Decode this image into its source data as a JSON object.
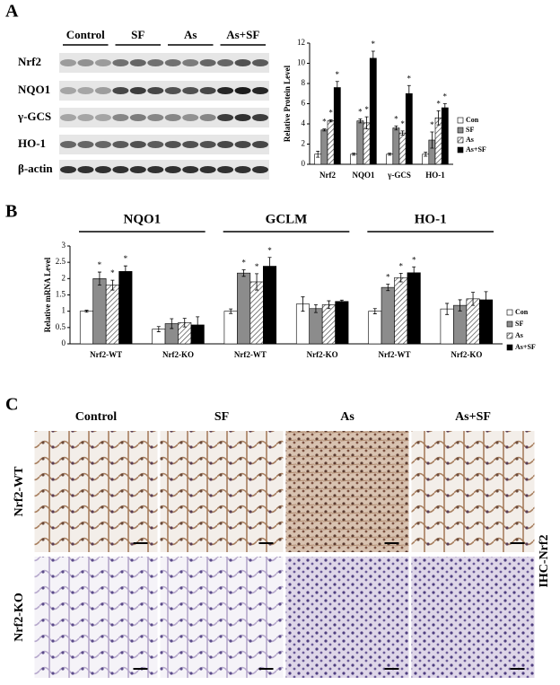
{
  "panels": {
    "a": {
      "label": "A",
      "blot": {
        "columns": [
          "Control",
          "SF",
          "As",
          "As+SF"
        ],
        "rows": [
          "Nrf2",
          "NQO1",
          "γ-GCS",
          "HO-1",
          "β-actin"
        ]
      }
    },
    "b": {
      "label": "B"
    },
    "c": {
      "label": "C",
      "columns": [
        "Control",
        "SF",
        "As",
        "As+SF"
      ],
      "rows": [
        "Nrf2-WT",
        "Nrf2-KO"
      ],
      "side_label": "IHC-Nrf2"
    }
  },
  "chart_data": [
    {
      "type": "bar",
      "ylabel": "Relative Protein Level",
      "categories": [
        "Nrf2",
        "NQO1",
        "γ-GCS",
        "HO-1"
      ],
      "ylim": [
        0,
        12
      ],
      "yticks": [
        0,
        2,
        4,
        6,
        8,
        10,
        12
      ],
      "marker": "*",
      "series": [
        {
          "name": "Con",
          "color": "#ffffff",
          "values": [
            1.0,
            1.0,
            1.0,
            1.0
          ],
          "errors": [
            0.3,
            0.1,
            0.1,
            0.2
          ],
          "significant": [
            false,
            false,
            false,
            false
          ]
        },
        {
          "name": "SF",
          "color": "#8c8c8c",
          "values": [
            3.4,
            4.3,
            3.6,
            2.4
          ],
          "errors": [
            0.1,
            0.2,
            0.2,
            0.8
          ],
          "significant": [
            true,
            true,
            true,
            true
          ]
        },
        {
          "name": "As",
          "color": "#d9d9d9",
          "values": [
            4.3,
            4.1,
            3.1,
            4.6
          ],
          "errors": [
            0.1,
            0.6,
            0.2,
            0.7
          ],
          "significant": [
            true,
            true,
            true,
            true
          ]
        },
        {
          "name": "As+SF",
          "color": "#000000",
          "values": [
            7.6,
            10.5,
            7.0,
            5.6
          ],
          "errors": [
            0.6,
            0.7,
            0.8,
            0.4
          ],
          "significant": [
            true,
            true,
            true,
            true
          ]
        }
      ]
    },
    {
      "type": "bar",
      "ylabel": "Relative mRNA Level",
      "groups": [
        "NQO1",
        "GCLM",
        "HO-1"
      ],
      "categories": [
        "Nrf2-WT",
        "Nrf2-KO",
        "Nrf2-WT",
        "Nrf2-KO",
        "Nrf2-WT",
        "Nrf2-KO"
      ],
      "ylim": [
        0,
        3
      ],
      "yticks": [
        0,
        0.5,
        1,
        1.5,
        2,
        2.5,
        3
      ],
      "marker": "*",
      "series": [
        {
          "name": "Con",
          "color": "#ffffff",
          "values": [
            1.0,
            0.45,
            1.0,
            1.22,
            1.0,
            1.07
          ],
          "errors": [
            0.03,
            0.08,
            0.07,
            0.22,
            0.08,
            0.17
          ],
          "significant": [
            false,
            false,
            false,
            false,
            false,
            false
          ]
        },
        {
          "name": "SF",
          "color": "#8c8c8c",
          "values": [
            2.0,
            0.62,
            2.17,
            1.08,
            1.73,
            1.18
          ],
          "errors": [
            0.2,
            0.15,
            0.1,
            0.12,
            0.1,
            0.17
          ],
          "significant": [
            true,
            false,
            true,
            false,
            true,
            false
          ]
        },
        {
          "name": "As",
          "color": "#d9d9d9",
          "values": [
            1.8,
            0.65,
            1.9,
            1.2,
            2.03,
            1.38
          ],
          "errors": [
            0.15,
            0.13,
            0.25,
            0.12,
            0.13,
            0.2
          ],
          "significant": [
            true,
            false,
            true,
            false,
            true,
            false
          ]
        },
        {
          "name": "As+SF",
          "color": "#000000",
          "values": [
            2.22,
            0.58,
            2.38,
            1.3,
            2.18,
            1.35
          ],
          "errors": [
            0.17,
            0.25,
            0.27,
            0.04,
            0.18,
            0.25
          ],
          "significant": [
            true,
            false,
            true,
            false,
            true,
            false
          ]
        }
      ]
    }
  ]
}
